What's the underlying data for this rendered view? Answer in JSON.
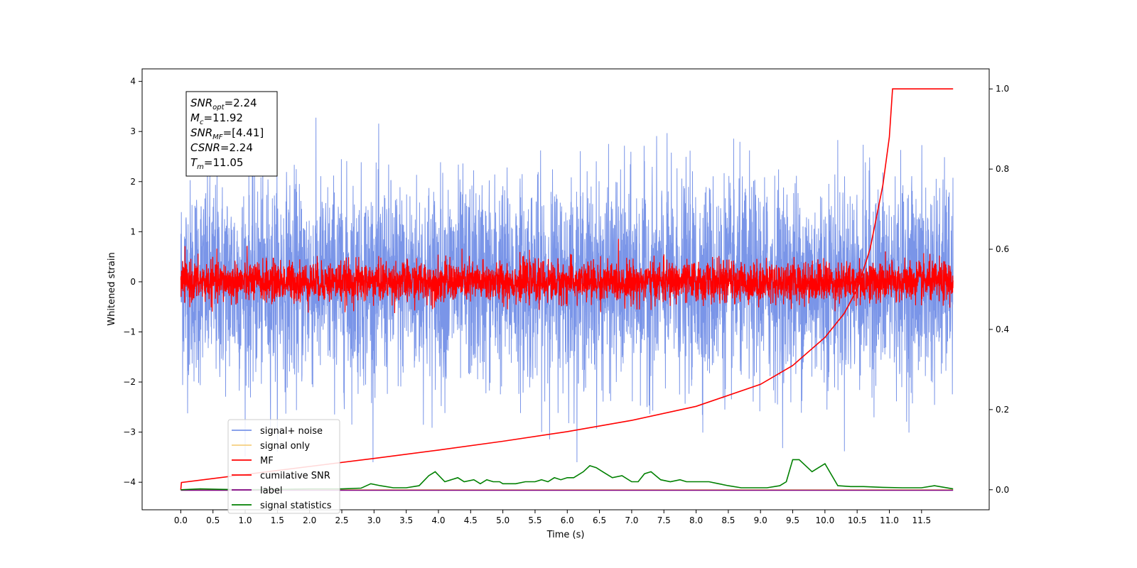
{
  "chart_data": {
    "type": "line",
    "xlabel": "Time (s)",
    "ylabel": "Whitened strain",
    "xlim": [
      -0.6,
      12.55
    ],
    "ylim": [
      -4.55,
      4.25
    ],
    "y2lim": [
      -0.05,
      1.05
    ],
    "x_ticks": [
      "0.0",
      "0.5",
      "1.0",
      "1.5",
      "2.0",
      "2.5",
      "3.0",
      "3.5",
      "4.0",
      "4.5",
      "5.0",
      "5.5",
      "6.0",
      "6.5",
      "7.0",
      "7.5",
      "8.0",
      "8.5",
      "9.0",
      "9.5",
      "10.0",
      "10.5",
      "11.0",
      "11.5"
    ],
    "y_ticks": [
      "4",
      "3",
      "2",
      "1",
      "0",
      "−1",
      "−2",
      "−3",
      "−4"
    ],
    "y2_ticks": [
      "1.0",
      "0.8",
      "0.6",
      "0.4",
      "0.2",
      "0.0"
    ],
    "grid": false,
    "legend_position": "lower-left",
    "legend": [
      "signal+ noise",
      "signal only",
      "MF",
      "cumilative SNR",
      "label",
      "signal statistics"
    ],
    "annotation": [
      {
        "base": "SNR",
        "sub": "opt",
        "value": "=2.24"
      },
      {
        "base": "M",
        "sub": "c",
        "value": "=11.92"
      },
      {
        "base": "SNR",
        "sub": "MF",
        "value": "=[4.41]"
      },
      {
        "base": "CSNR",
        "sub": "",
        "value": "=2.24"
      },
      {
        "base": "T",
        "sub": "m",
        "value": "=11.05"
      }
    ],
    "series": [
      {
        "name": "signal+ noise",
        "color": "#7a95e8",
        "axis": "left",
        "t_range": [
          0.0,
          11.99
        ],
        "mean": 0.0,
        "std": 1.0,
        "min": -3.6,
        "max": 3.87
      },
      {
        "name": "signal only",
        "color": "#f4cf80",
        "axis": "left",
        "t_range": [
          0.0,
          11.99
        ],
        "values_constant": -4.15
      },
      {
        "name": "MF",
        "color": "#ff0000",
        "axis": "left",
        "t_range": [
          0.0,
          11.99
        ],
        "mean": 0.0,
        "std": 0.2,
        "max": 0.95
      },
      {
        "name": "cumilative SNR",
        "color": "#ff0000",
        "axis": "right",
        "x": [
          0.0,
          0.01,
          1.0,
          2.0,
          3.0,
          4.0,
          5.0,
          6.0,
          7.0,
          8.0,
          9.0,
          9.5,
          10.0,
          10.3,
          10.5,
          10.7,
          10.9,
          11.0,
          11.05,
          11.99
        ],
        "y": [
          0.0,
          0.018,
          0.038,
          0.058,
          0.078,
          0.099,
          0.121,
          0.145,
          0.173,
          0.208,
          0.263,
          0.31,
          0.38,
          0.44,
          0.5,
          0.6,
          0.76,
          0.88,
          1.0,
          1.0
        ]
      },
      {
        "name": "label",
        "color": "#800080",
        "axis": "left",
        "x": [
          0.0,
          11.99
        ],
        "y": [
          -4.16,
          -4.16
        ]
      },
      {
        "name": "signal statistics",
        "color": "#008000",
        "axis": "right",
        "x": [
          0.0,
          0.3,
          0.6,
          1.0,
          1.5,
          2.0,
          2.5,
          2.8,
          2.95,
          3.1,
          3.3,
          3.5,
          3.7,
          3.85,
          3.95,
          4.1,
          4.3,
          4.4,
          4.55,
          4.65,
          4.75,
          4.85,
          4.95,
          5.0,
          5.2,
          5.35,
          5.5,
          5.6,
          5.7,
          5.8,
          5.9,
          6.0,
          6.1,
          6.25,
          6.35,
          6.45,
          6.55,
          6.7,
          6.85,
          7.0,
          7.1,
          7.2,
          7.3,
          7.45,
          7.6,
          7.75,
          7.85,
          8.0,
          8.2,
          8.35,
          8.5,
          8.7,
          8.9,
          9.1,
          9.3,
          9.4,
          9.5,
          9.6,
          9.7,
          9.8,
          9.9,
          10.0,
          10.2,
          10.4,
          10.6,
          10.9,
          11.2,
          11.5,
          11.7,
          11.99
        ],
        "y": [
          0.0,
          0.002,
          0.001,
          0.0,
          0.001,
          0.002,
          0.002,
          0.004,
          0.015,
          0.01,
          0.005,
          0.005,
          0.01,
          0.035,
          0.045,
          0.02,
          0.03,
          0.02,
          0.025,
          0.015,
          0.025,
          0.02,
          0.02,
          0.015,
          0.015,
          0.02,
          0.02,
          0.025,
          0.02,
          0.03,
          0.025,
          0.03,
          0.03,
          0.045,
          0.06,
          0.055,
          0.045,
          0.03,
          0.035,
          0.02,
          0.02,
          0.04,
          0.045,
          0.025,
          0.02,
          0.025,
          0.02,
          0.02,
          0.02,
          0.015,
          0.01,
          0.005,
          0.005,
          0.005,
          0.01,
          0.02,
          0.075,
          0.075,
          0.06,
          0.045,
          0.055,
          0.065,
          0.01,
          0.008,
          0.008,
          0.006,
          0.005,
          0.005,
          0.01,
          0.002
        ]
      }
    ]
  }
}
